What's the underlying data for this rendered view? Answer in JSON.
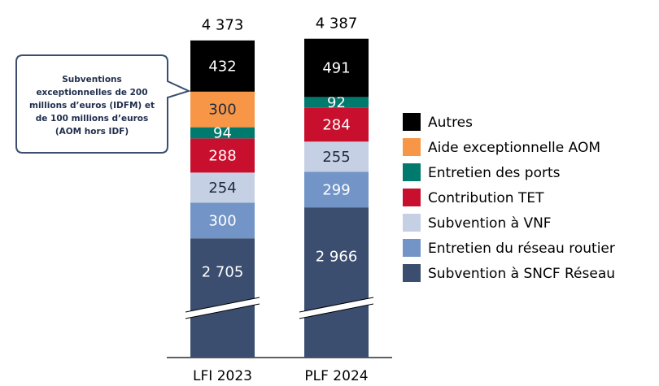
{
  "chart_data": {
    "type": "stacked-bar",
    "categories": [
      "LFI 2023",
      "PLF 2024"
    ],
    "series": [
      {
        "name": "Subvention à SNCF Réseau",
        "color": "#3b4e6f",
        "values": [
          2705,
          2966
        ],
        "value_labels": [
          "2 705",
          "2 966"
        ]
      },
      {
        "name": "Entretien du réseau routier",
        "color": "#7294c6",
        "values": [
          300,
          299
        ]
      },
      {
        "name": "Subvention à VNF",
        "color": "#c6d0e4",
        "values": [
          254,
          255
        ]
      },
      {
        "name": "Contribution TET",
        "color": "#c8102e",
        "values": [
          288,
          284
        ]
      },
      {
        "name": "Entretien des ports",
        "color": "#007a6c",
        "values": [
          94,
          92
        ]
      },
      {
        "name": "Aide exceptionnelle AOM",
        "color": "#f79646",
        "values": [
          300,
          null
        ]
      },
      {
        "name": "Autres",
        "color": "#000000",
        "values": [
          432,
          491
        ]
      }
    ],
    "totals": [
      4373,
      4387
    ],
    "total_labels": [
      "4 373",
      "4 387"
    ],
    "annotation": [
      "Subventions",
      "exceptionnelles de 200",
      "millions d’euros  (IDFM) et",
      "de 100 millions d’euros",
      "(AOM hors IDF)"
    ]
  }
}
